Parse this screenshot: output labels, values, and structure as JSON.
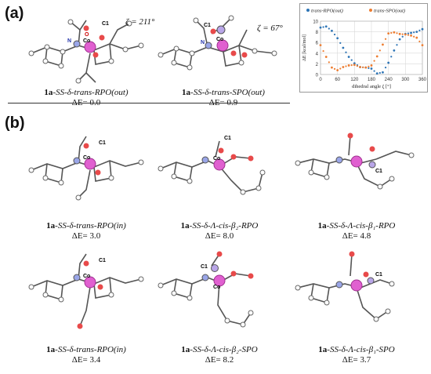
{
  "panels": {
    "a": "(a)",
    "b": "(b)"
  },
  "angles": {
    "zeta1": "ζ = 211°",
    "zeta2": "ζ = 67°"
  },
  "structures": [
    {
      "prefix": "1a",
      "italic": "-SS-δ-trans-",
      "rest": "RPO(out)",
      "energy": "ΔE= 0.0"
    },
    {
      "prefix": "1a",
      "italic": "-SS-δ-trans-",
      "rest": "SPO(out)",
      "energy": "ΔE= 0.9"
    },
    {
      "prefix": "1a",
      "italic": "-SS-δ-trans-",
      "rest": "RPO(in)",
      "energy": "ΔE= 3.0"
    },
    {
      "prefix": "1a",
      "italic": "-SS-δ-Λ-cis-β",
      "rest": "₂-RPO",
      "energy": "ΔE= 8.0"
    },
    {
      "prefix": "1a",
      "italic": "-SS-δ-Λ-cis-β",
      "rest": "₁-RPO",
      "energy": "ΔE= 4.8"
    },
    {
      "prefix": "1a",
      "italic": "-SS-δ-trans-",
      "rest": "RPO(in)",
      "energy": "ΔE= 3.4"
    },
    {
      "prefix": "1a",
      "italic": "-SS-δ-Λ-cis-β",
      "rest": "₂-SPO",
      "energy": "ΔE= 8.2"
    },
    {
      "prefix": "1a",
      "italic": "-SS-δ-Λ-cis-β",
      "rest": "₁-SPO",
      "energy": "ΔE= 3.7"
    }
  ],
  "atom_labels": {
    "co": "Co",
    "n": "N",
    "c1": "C1",
    "o": "O"
  },
  "chart_data": {
    "type": "line",
    "xlabel": "dihedral angle ζ [°]",
    "ylabel": "ΔE [kcal/mol]",
    "xlim": [
      0,
      360
    ],
    "ylim": [
      0,
      10
    ],
    "xticks": [
      0,
      60,
      120,
      180,
      240,
      300,
      360
    ],
    "yticks": [
      0,
      2,
      4,
      6,
      8,
      10
    ],
    "legend_position": "top",
    "series": [
      {
        "name": "trans-RPO(out)",
        "color": "#2e75b6",
        "x": [
          0,
          20,
          40,
          60,
          80,
          100,
          120,
          140,
          160,
          180,
          200,
          220,
          240,
          260,
          280,
          300,
          320,
          340,
          360
        ],
        "y": [
          8.8,
          9.0,
          8.2,
          6.8,
          5.0,
          3.3,
          2.1,
          1.4,
          1.3,
          1.1,
          0.2,
          0.4,
          2.2,
          4.5,
          6.6,
          7.6,
          7.8,
          8.0,
          8.5
        ]
      },
      {
        "name": "trans-SPO(out)",
        "color": "#ed7d31",
        "x": [
          0,
          20,
          40,
          60,
          80,
          100,
          120,
          140,
          160,
          180,
          200,
          220,
          240,
          260,
          280,
          300,
          320,
          340,
          360
        ],
        "y": [
          5.5,
          3.3,
          1.3,
          0.8,
          1.4,
          1.7,
          1.8,
          1.4,
          1.3,
          1.7,
          3.4,
          5.6,
          7.7,
          7.9,
          7.6,
          7.5,
          7.3,
          6.9,
          5.5
        ]
      }
    ]
  }
}
